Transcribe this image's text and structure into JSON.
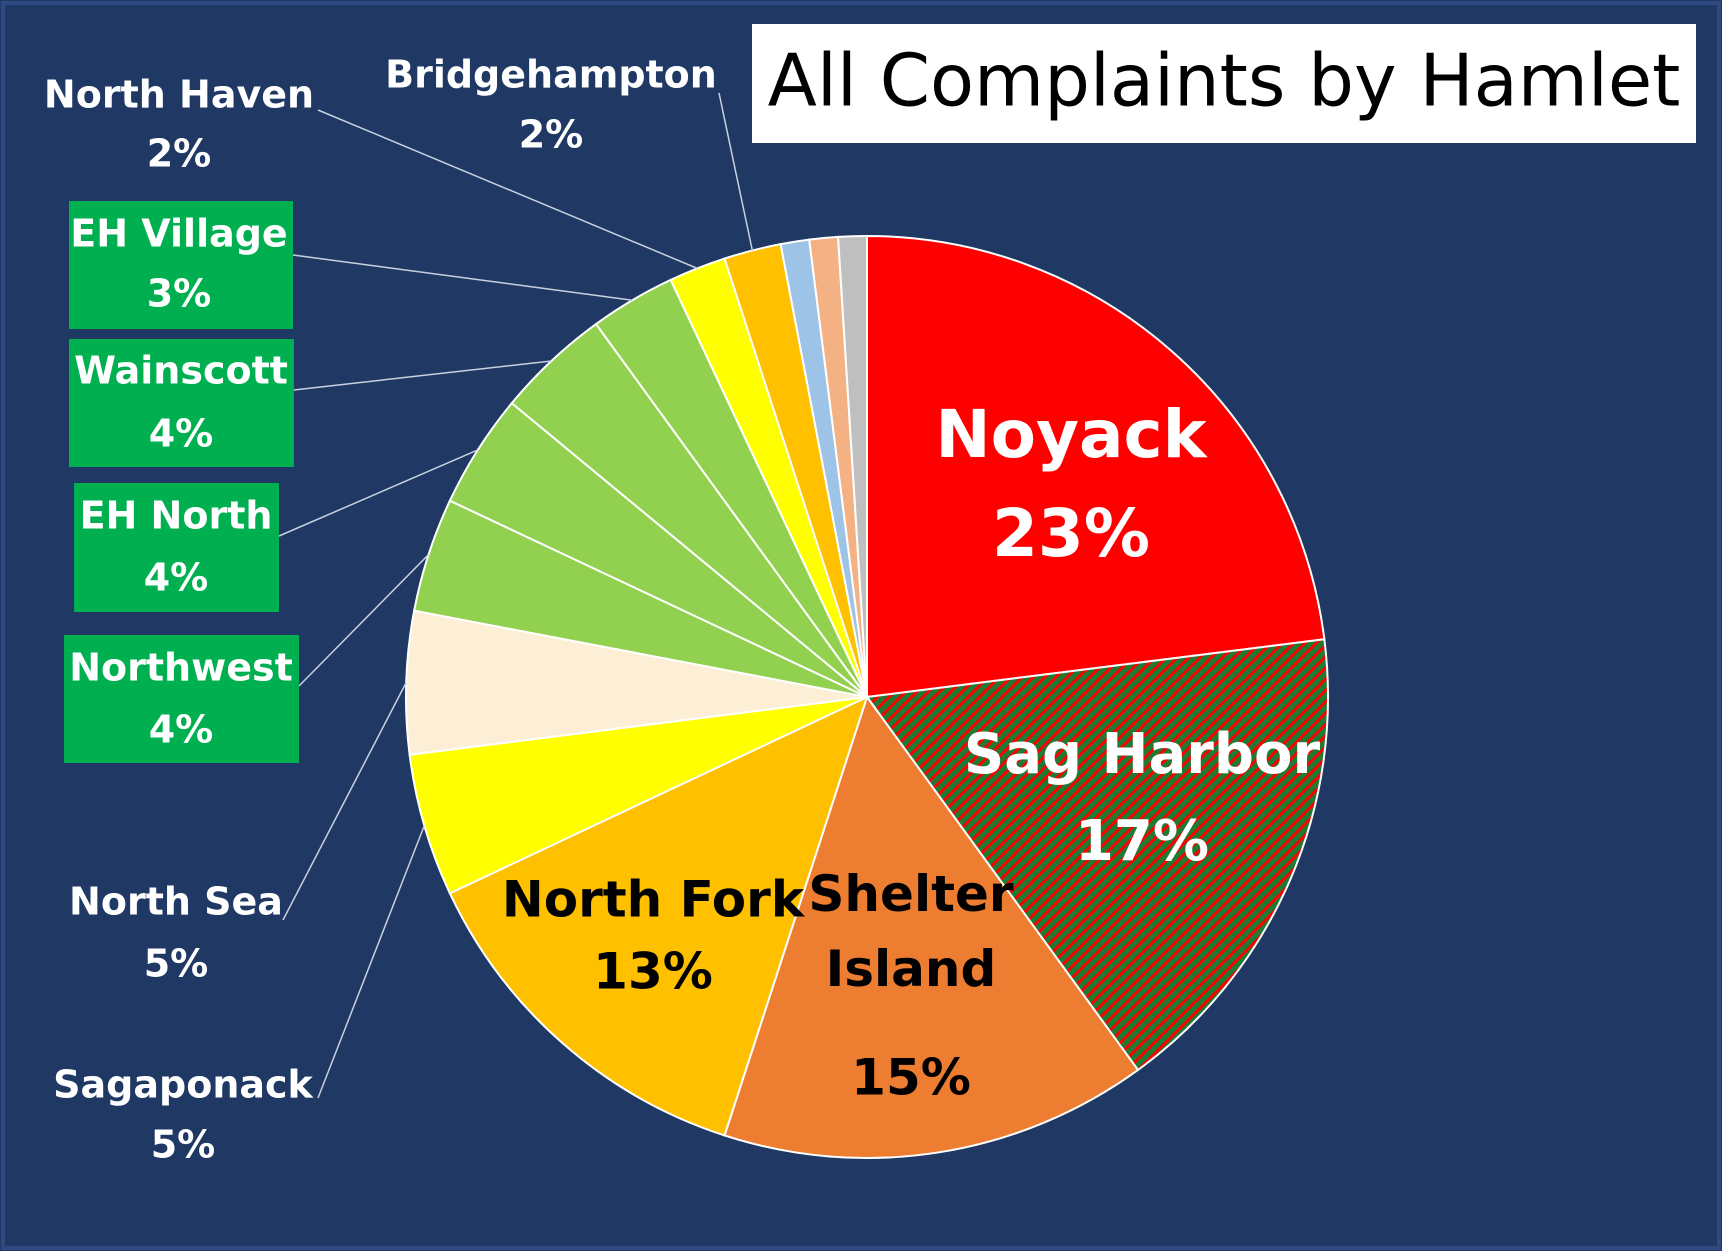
{
  "chart_data": {
    "type": "pie",
    "title": "All Complaints by Hamlet",
    "categories": [
      "Noyack",
      "Sag Harbor",
      "Shelter Island",
      "North Fork",
      "Sagaponack",
      "North Sea",
      "Northwest",
      "EH North",
      "Wainscott",
      "EH Village",
      "North Haven",
      "Bridgehampton",
      null,
      null,
      null
    ],
    "values": [
      23,
      17,
      15,
      13,
      5,
      5,
      4,
      4,
      4,
      3,
      2,
      2,
      1,
      1,
      1
    ],
    "value_labels": [
      "23%",
      "17%",
      "15%",
      "13%",
      "5%",
      "5%",
      "4%",
      "4%",
      "4%",
      "3%",
      "2%",
      "2%",
      null,
      null,
      null
    ],
    "colors": [
      "#ff0000",
      "#1e7b34",
      "#ed7d31",
      "#ffc000",
      "#ffff00",
      "#fdefd6",
      "#92d050",
      "#92d050",
      "#92d050",
      "#92d050",
      "#ffff00",
      "#ffc000",
      "#9dc3e6",
      "#f4b183",
      "#bfbfbf"
    ],
    "hatch": {
      "index": 1,
      "color": "#ff0000"
    }
  }
}
